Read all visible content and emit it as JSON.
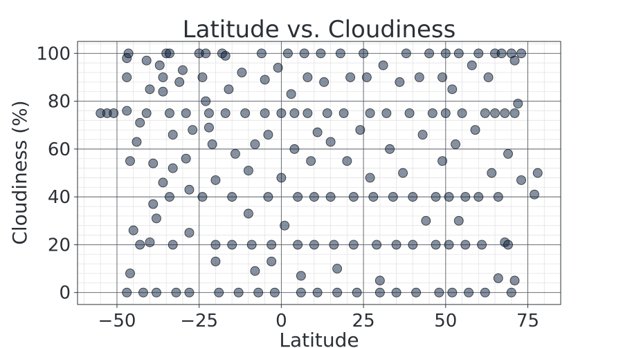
{
  "chart_data": {
    "type": "scatter",
    "title": "Latitude vs. Cloudiness",
    "xlabel": "Latitude",
    "ylabel": "Cloudiness (%)",
    "xlim": [
      -62,
      85
    ],
    "ylim": [
      -5,
      105
    ],
    "xticks": [
      -50,
      -25,
      0,
      25,
      50,
      75
    ],
    "xtick_labels": [
      "−50",
      "−25",
      "0",
      "25",
      "50",
      "75"
    ],
    "yticks": [
      0,
      20,
      40,
      60,
      80,
      100
    ],
    "ytick_labels": [
      "0",
      "20",
      "40",
      "60",
      "80",
      "100"
    ],
    "grid": true,
    "marker_color": "#0b2143",
    "marker_edge": "#000000",
    "marker_alpha": 0.5,
    "points": [
      {
        "x": -55,
        "y": 75
      },
      {
        "x": -53,
        "y": 75
      },
      {
        "x": -51,
        "y": 75
      },
      {
        "x": -47,
        "y": 98
      },
      {
        "x": -46.5,
        "y": 100
      },
      {
        "x": -47,
        "y": 90
      },
      {
        "x": -47,
        "y": 76
      },
      {
        "x": -46,
        "y": 55
      },
      {
        "x": -45,
        "y": 26
      },
      {
        "x": -46,
        "y": 8
      },
      {
        "x": -47,
        "y": 0
      },
      {
        "x": -43,
        "y": 71
      },
      {
        "x": -44,
        "y": 63
      },
      {
        "x": -43,
        "y": 20
      },
      {
        "x": -42,
        "y": 0
      },
      {
        "x": -41,
        "y": 97
      },
      {
        "x": -40,
        "y": 85
      },
      {
        "x": -41,
        "y": 75
      },
      {
        "x": -40,
        "y": 21
      },
      {
        "x": -39,
        "y": 54
      },
      {
        "x": -39,
        "y": 37
      },
      {
        "x": -38,
        "y": 31
      },
      {
        "x": -38,
        "y": 0
      },
      {
        "x": -37,
        "y": 95
      },
      {
        "x": -36,
        "y": 90
      },
      {
        "x": -36,
        "y": 84
      },
      {
        "x": -36,
        "y": 46
      },
      {
        "x": -35,
        "y": 100
      },
      {
        "x": -34,
        "y": 100
      },
      {
        "x": -34,
        "y": 75
      },
      {
        "x": -34,
        "y": 40
      },
      {
        "x": -33,
        "y": 20
      },
      {
        "x": -33,
        "y": 66
      },
      {
        "x": -33,
        "y": 52
      },
      {
        "x": -32,
        "y": 0
      },
      {
        "x": -31,
        "y": 88
      },
      {
        "x": -30,
        "y": 93
      },
      {
        "x": -29,
        "y": 75
      },
      {
        "x": -29,
        "y": 56
      },
      {
        "x": -28,
        "y": 43
      },
      {
        "x": -28,
        "y": 25
      },
      {
        "x": -28,
        "y": 0
      },
      {
        "x": -27,
        "y": 68
      },
      {
        "x": -25,
        "y": 100
      },
      {
        "x": -24,
        "y": 90
      },
      {
        "x": -23,
        "y": 80
      },
      {
        "x": -23,
        "y": 100
      },
      {
        "x": -22,
        "y": 69
      },
      {
        "x": -22,
        "y": 75
      },
      {
        "x": -21,
        "y": 62
      },
      {
        "x": -20,
        "y": 47
      },
      {
        "x": -20,
        "y": 20
      },
      {
        "x": -20,
        "y": 13
      },
      {
        "x": -19,
        "y": 0
      },
      {
        "x": -24,
        "y": 40
      },
      {
        "x": -18,
        "y": 100
      },
      {
        "x": -17,
        "y": 99
      },
      {
        "x": -17,
        "y": 75
      },
      {
        "x": -16,
        "y": 85
      },
      {
        "x": -15,
        "y": 40
      },
      {
        "x": -15,
        "y": 20
      },
      {
        "x": -14,
        "y": 58
      },
      {
        "x": -13,
        "y": 0
      },
      {
        "x": -12,
        "y": 92
      },
      {
        "x": -11,
        "y": 75
      },
      {
        "x": -10,
        "y": 51
      },
      {
        "x": -10,
        "y": 33
      },
      {
        "x": -9,
        "y": 20
      },
      {
        "x": -8,
        "y": 9
      },
      {
        "x": -8,
        "y": 62
      },
      {
        "x": -7,
        "y": 0
      },
      {
        "x": -6,
        "y": 100
      },
      {
        "x": -5,
        "y": 89
      },
      {
        "x": -5,
        "y": 75
      },
      {
        "x": -4,
        "y": 66
      },
      {
        "x": -4,
        "y": 40
      },
      {
        "x": -3,
        "y": 20
      },
      {
        "x": -3,
        "y": 13
      },
      {
        "x": -2,
        "y": 0
      },
      {
        "x": -1,
        "y": 94
      },
      {
        "x": 0,
        "y": 75
      },
      {
        "x": 0,
        "y": 48
      },
      {
        "x": 1,
        "y": 28
      },
      {
        "x": 2,
        "y": 100
      },
      {
        "x": 3,
        "y": 83
      },
      {
        "x": 4,
        "y": 75
      },
      {
        "x": 4,
        "y": 60
      },
      {
        "x": 5,
        "y": 40
      },
      {
        "x": 5,
        "y": 20
      },
      {
        "x": 6,
        "y": 7
      },
      {
        "x": 6,
        "y": 0
      },
      {
        "x": 7,
        "y": 100
      },
      {
        "x": 8,
        "y": 90
      },
      {
        "x": 8,
        "y": 75
      },
      {
        "x": 9,
        "y": 55
      },
      {
        "x": 10,
        "y": 40
      },
      {
        "x": 10,
        "y": 20
      },
      {
        "x": 11,
        "y": 0
      },
      {
        "x": 11,
        "y": 67
      },
      {
        "x": 12,
        "y": 100
      },
      {
        "x": 13,
        "y": 88
      },
      {
        "x": 14,
        "y": 75
      },
      {
        "x": 15,
        "y": 63
      },
      {
        "x": 15,
        "y": 40
      },
      {
        "x": 16,
        "y": 20
      },
      {
        "x": 17,
        "y": 10
      },
      {
        "x": 17,
        "y": 0
      },
      {
        "x": 18,
        "y": 100
      },
      {
        "x": 19,
        "y": 75
      },
      {
        "x": 20,
        "y": 55
      },
      {
        "x": 21,
        "y": 90
      },
      {
        "x": 22,
        "y": 40
      },
      {
        "x": 22,
        "y": 20
      },
      {
        "x": 23,
        "y": 0
      },
      {
        "x": 24,
        "y": 68
      },
      {
        "x": 25,
        "y": 100
      },
      {
        "x": 26,
        "y": 90
      },
      {
        "x": 27,
        "y": 75
      },
      {
        "x": 27,
        "y": 48
      },
      {
        "x": 28,
        "y": 40
      },
      {
        "x": 29,
        "y": 20
      },
      {
        "x": 30,
        "y": 5
      },
      {
        "x": 30,
        "y": 0
      },
      {
        "x": 31,
        "y": 95
      },
      {
        "x": 32,
        "y": 75
      },
      {
        "x": 33,
        "y": 60
      },
      {
        "x": 34,
        "y": 40
      },
      {
        "x": 35,
        "y": 20
      },
      {
        "x": 35,
        "y": 0
      },
      {
        "x": 36,
        "y": 88
      },
      {
        "x": 37,
        "y": 50
      },
      {
        "x": 38,
        "y": 100
      },
      {
        "x": 39,
        "y": 75
      },
      {
        "x": 40,
        "y": 40
      },
      {
        "x": 40,
        "y": 20
      },
      {
        "x": 41,
        "y": 0
      },
      {
        "x": 42,
        "y": 90
      },
      {
        "x": 43,
        "y": 66
      },
      {
        "x": 44,
        "y": 30
      },
      {
        "x": 45,
        "y": 100
      },
      {
        "x": 46,
        "y": 75
      },
      {
        "x": 47,
        "y": 40
      },
      {
        "x": 47,
        "y": 20
      },
      {
        "x": 48,
        "y": 0
      },
      {
        "x": 49,
        "y": 90
      },
      {
        "x": 49,
        "y": 55
      },
      {
        "x": 50,
        "y": 100
      },
      {
        "x": 50,
        "y": 75
      },
      {
        "x": 51,
        "y": 40
      },
      {
        "x": 51,
        "y": 20
      },
      {
        "x": 52,
        "y": 0
      },
      {
        "x": 52,
        "y": 85
      },
      {
        "x": 53,
        "y": 62
      },
      {
        "x": 54,
        "y": 30
      },
      {
        "x": 54,
        "y": 100
      },
      {
        "x": 55,
        "y": 75
      },
      {
        "x": 56,
        "y": 40
      },
      {
        "x": 56,
        "y": 20
      },
      {
        "x": 57,
        "y": 0
      },
      {
        "x": 58,
        "y": 95
      },
      {
        "x": 59,
        "y": 68
      },
      {
        "x": 60,
        "y": 100
      },
      {
        "x": 60,
        "y": 40
      },
      {
        "x": 61,
        "y": 20
      },
      {
        "x": 62,
        "y": 75
      },
      {
        "x": 62,
        "y": 0
      },
      {
        "x": 63,
        "y": 90
      },
      {
        "x": 64,
        "y": 50
      },
      {
        "x": 65,
        "y": 100
      },
      {
        "x": 65,
        "y": 75
      },
      {
        "x": 66,
        "y": 40
      },
      {
        "x": 66,
        "y": 6
      },
      {
        "x": 67,
        "y": 100
      },
      {
        "x": 68,
        "y": 21
      },
      {
        "x": 68,
        "y": 75
      },
      {
        "x": 69,
        "y": 58
      },
      {
        "x": 69,
        "y": 20
      },
      {
        "x": 70,
        "y": 100
      },
      {
        "x": 70,
        "y": 0
      },
      {
        "x": 71,
        "y": 97
      },
      {
        "x": 71,
        "y": 75
      },
      {
        "x": 71,
        "y": 5
      },
      {
        "x": 72,
        "y": 79
      },
      {
        "x": 73,
        "y": 100
      },
      {
        "x": 73,
        "y": 47
      },
      {
        "x": 77,
        "y": 41
      },
      {
        "x": 78,
        "y": 50
      }
    ]
  }
}
